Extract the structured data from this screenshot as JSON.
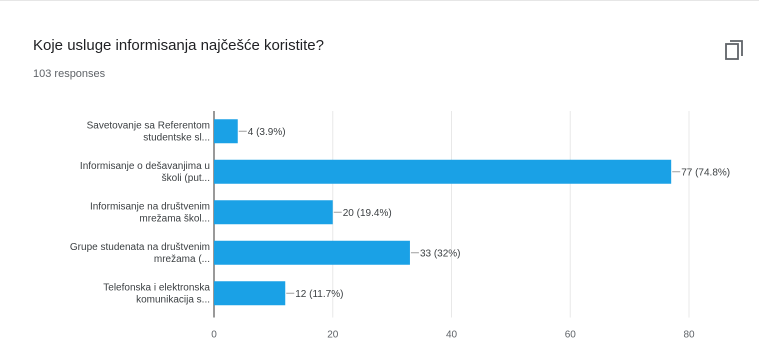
{
  "header": {
    "title": "Koje usluge informisanja najčešće koristite?",
    "responses": "103 responses",
    "copy_icon": "copy-icon"
  },
  "colors": {
    "bar": "#1aa1e6",
    "grid": "#e8e8e8",
    "axis": "#333333"
  },
  "chart_data": {
    "type": "bar",
    "orientation": "horizontal",
    "categories": [
      [
        "Savetovanje sa Referentom",
        "studentske sl..."
      ],
      [
        "Informisanje o dešavanjima u",
        "školi (put..."
      ],
      [
        "Informisanje na društvenim",
        "mrežama škol..."
      ],
      [
        "Grupe studenata na društvenim",
        "mrežama (..."
      ],
      [
        "Telefonska i elektronska",
        "komunikacija s..."
      ]
    ],
    "values": [
      4,
      77,
      20,
      33,
      12
    ],
    "data_labels": [
      "4 (3.9%)",
      "77 (74.8%)",
      "20 (19.4%)",
      "33 (32%)",
      "12 (11.7%)"
    ],
    "xlim": [
      0,
      80
    ],
    "xticks": [
      "0",
      "20",
      "40",
      "60",
      "80"
    ],
    "grid": true
  }
}
